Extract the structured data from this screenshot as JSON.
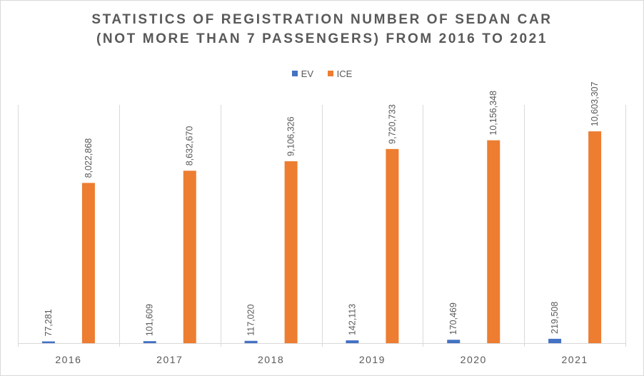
{
  "chart_data": {
    "type": "bar",
    "title_line1": "STATISTICS OF REGISTRATION NUMBER OF SEDAN CAR",
    "title_line2": "(NOT MORE THAN 7 PASSENGERS) FROM 2016 TO 2021",
    "categories": [
      "2016",
      "2017",
      "2018",
      "2019",
      "2020",
      "2021"
    ],
    "series": [
      {
        "name": "EV",
        "color": "#4472c4",
        "values": [
          77281,
          101609,
          117020,
          142113,
          170469,
          219508
        ],
        "labels": [
          "77,281",
          "101,609",
          "117,020",
          "142,113",
          "170,469",
          "219,508"
        ]
      },
      {
        "name": "ICE",
        "color": "#ed7d31",
        "values": [
          8022868,
          8632670,
          9106326,
          9720733,
          10156348,
          10603307
        ],
        "labels": [
          "8,022,868",
          "8,632,670",
          "9,106,326",
          "9,720,733",
          "10,156,348",
          "10,603,307"
        ]
      }
    ],
    "legend_position": "top",
    "grid": "vertical category separators",
    "ylim": [
      0,
      12000000
    ]
  }
}
